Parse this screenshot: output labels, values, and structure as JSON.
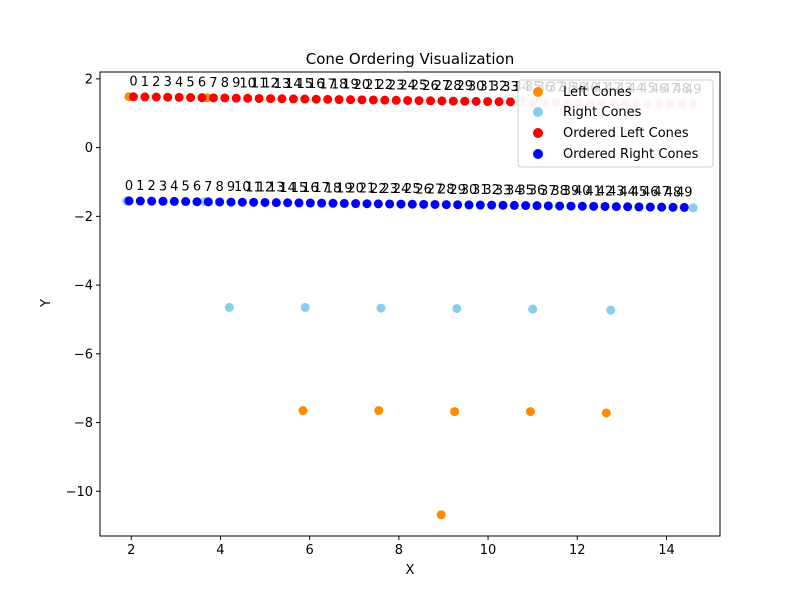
{
  "chart_data": {
    "type": "scatter",
    "title": "Cone Ordering Visualization",
    "xlabel": "X",
    "ylabel": "Y",
    "xlim": [
      1.3,
      15.2
    ],
    "ylim": [
      -11.3,
      2.2
    ],
    "xticks": [
      2,
      4,
      6,
      8,
      10,
      12,
      14
    ],
    "yticks": [
      2,
      0,
      -2,
      -4,
      -6,
      -8,
      -10
    ],
    "xtick_labels": [
      "2",
      "4",
      "6",
      "8",
      "10",
      "12",
      "14"
    ],
    "ytick_labels": [
      "2",
      "0",
      "−2",
      "−4",
      "−6",
      "−8",
      "−10"
    ],
    "grid": false,
    "legend_position": "upper right",
    "series": [
      {
        "name": "Left Cones",
        "color": "#ff8c00",
        "points": [
          [
            1.95,
            1.48
          ],
          [
            3.7,
            1.45
          ],
          [
            5.85,
            -7.65
          ],
          [
            7.55,
            -7.65
          ],
          [
            9.25,
            -7.68
          ],
          [
            10.95,
            -7.68
          ],
          [
            12.65,
            -7.72
          ],
          [
            8.95,
            -10.68
          ]
        ]
      },
      {
        "name": "Right Cones",
        "color": "#87ceeb",
        "points": [
          [
            1.9,
            -1.55
          ],
          [
            3.65,
            -1.57
          ],
          [
            4.2,
            -4.65
          ],
          [
            5.9,
            -4.65
          ],
          [
            7.6,
            -4.67
          ],
          [
            9.3,
            -4.68
          ],
          [
            11.0,
            -4.7
          ],
          [
            12.75,
            -4.73
          ],
          [
            14.6,
            -1.75
          ]
        ]
      },
      {
        "name": "Ordered Left Cones",
        "color": "#ff0000",
        "x_start": 2.05,
        "x_end": 14.6,
        "y_start": 1.48,
        "y_end": 1.26,
        "count": 50,
        "faded_from_index": 34,
        "fade_color": "#ffc0cb"
      },
      {
        "name": "Ordered Right Cones",
        "color": "#0000ff",
        "x_start": 1.95,
        "x_end": 14.4,
        "y_start": -1.55,
        "y_end": -1.74,
        "count": 50
      }
    ]
  }
}
